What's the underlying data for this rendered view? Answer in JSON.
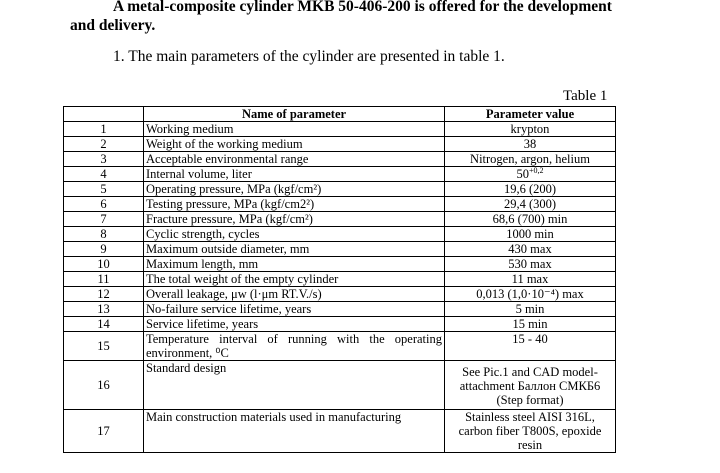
{
  "header": {
    "title_line1": "A metal-composite cylinder MKB 50-406-200 is offered for the development",
    "title_line2": "and delivery."
  },
  "intro": "1. The main parameters of the cylinder are presented in table 1.",
  "table": {
    "caption": "Table 1",
    "columns": [
      "Name of parameter",
      "Parameter value"
    ],
    "rows": [
      [
        "1",
        "Working medium",
        "krypton"
      ],
      [
        "2",
        "Weight of the working medium",
        "38"
      ],
      [
        "3",
        "Acceptable environmental range",
        "Nitrogen, argon, helium"
      ],
      [
        "4",
        "Internal volume, liter",
        {
          "base": "50",
          "sup": "+0,2"
        }
      ],
      [
        "5",
        "Operating pressure, MPa (kgf/cm²)",
        "19,6 (200)"
      ],
      [
        "6",
        "Testing pressure, MPa (kgf/cm2²)",
        "29,4 (300)"
      ],
      [
        "7",
        "Fracture pressure, MPa (kgf/cm²)",
        "68,6 (700) min"
      ],
      [
        "8",
        "Cyclic strength, cycles",
        "1000 min"
      ],
      [
        "9",
        "Maximum outside diameter, mm",
        "430 max"
      ],
      [
        "10",
        "Maximum length, mm",
        "530 max"
      ],
      [
        "11",
        "The total weight of the empty cylinder",
        "11 max"
      ],
      [
        "12",
        "Overall leakage, μw (l·μm RT.V./s)",
        "0,013 (1,0·10⁻⁴) max"
      ],
      [
        "13",
        "No-failure service lifetime, years",
        "5 min"
      ],
      [
        "14",
        "Service lifetime, years",
        "15 min"
      ],
      [
        "15",
        "Temperature interval of running with the operating environment, ⁰C",
        "15 - 40"
      ],
      [
        "16",
        "Standard design",
        "See Pic.1 and CAD model-attachment Баллон СМКБ6 (Step format)"
      ],
      [
        "17",
        "Main construction materials used in manufacturing",
        "Stainless steel AISI 316L, carbon fiber T800S, epoxide resin"
      ]
    ]
  }
}
